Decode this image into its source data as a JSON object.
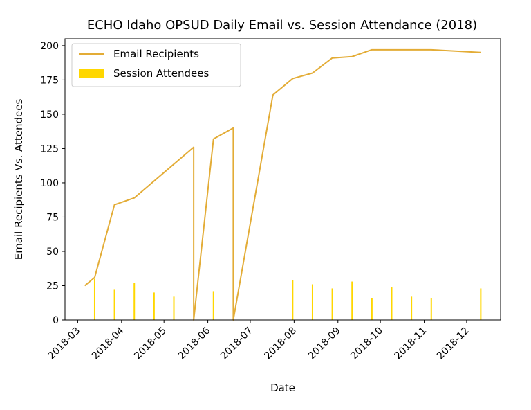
{
  "chart_data": {
    "type": "line",
    "title": "ECHO Idaho OPSUD Daily Email vs. Session Attendance (2018)",
    "xlabel": "Date",
    "ylabel": "Email Recipients Vs. Attendees",
    "ylim": [
      0,
      205
    ],
    "xlim": [
      "2018-02-20",
      "2018-12-25"
    ],
    "yticks": [
      0,
      25,
      50,
      75,
      100,
      125,
      150,
      175,
      200
    ],
    "xticks": [
      "2018-03",
      "2018-04",
      "2018-05",
      "2018-06",
      "2018-07",
      "2018-08",
      "2018-09",
      "2018-10",
      "2018-11",
      "2018-12"
    ],
    "legend_position": "upper-left",
    "series": [
      {
        "name": "Email Recipients",
        "type": "line",
        "color": "#e3ac36",
        "points": [
          [
            "2018-03-06",
            25
          ],
          [
            "2018-03-13",
            31
          ],
          [
            "2018-03-27",
            84
          ],
          [
            "2018-04-10",
            89
          ],
          [
            "2018-05-22",
            126
          ],
          [
            "2018-05-22",
            0
          ],
          [
            "2018-06-05",
            132
          ],
          [
            "2018-06-19",
            140
          ],
          [
            "2018-06-19",
            0
          ],
          [
            "2018-07-17",
            164
          ],
          [
            "2018-07-31",
            176
          ],
          [
            "2018-08-14",
            180
          ],
          [
            "2018-08-28",
            191
          ],
          [
            "2018-09-11",
            192
          ],
          [
            "2018-09-25",
            197
          ],
          [
            "2018-11-06",
            197
          ],
          [
            "2018-12-11",
            195
          ]
        ]
      },
      {
        "name": "Session Attendees",
        "type": "bar",
        "color": "#ffd700",
        "points": [
          [
            "2018-03-13",
            30
          ],
          [
            "2018-03-27",
            22
          ],
          [
            "2018-04-10",
            27
          ],
          [
            "2018-04-24",
            20
          ],
          [
            "2018-05-08",
            17
          ],
          [
            "2018-06-05",
            21
          ],
          [
            "2018-07-31",
            29
          ],
          [
            "2018-08-14",
            26
          ],
          [
            "2018-08-28",
            23
          ],
          [
            "2018-09-11",
            28
          ],
          [
            "2018-09-25",
            16
          ],
          [
            "2018-10-09",
            24
          ],
          [
            "2018-10-23",
            17
          ],
          [
            "2018-11-06",
            16
          ],
          [
            "2018-12-11",
            23
          ]
        ]
      }
    ]
  }
}
